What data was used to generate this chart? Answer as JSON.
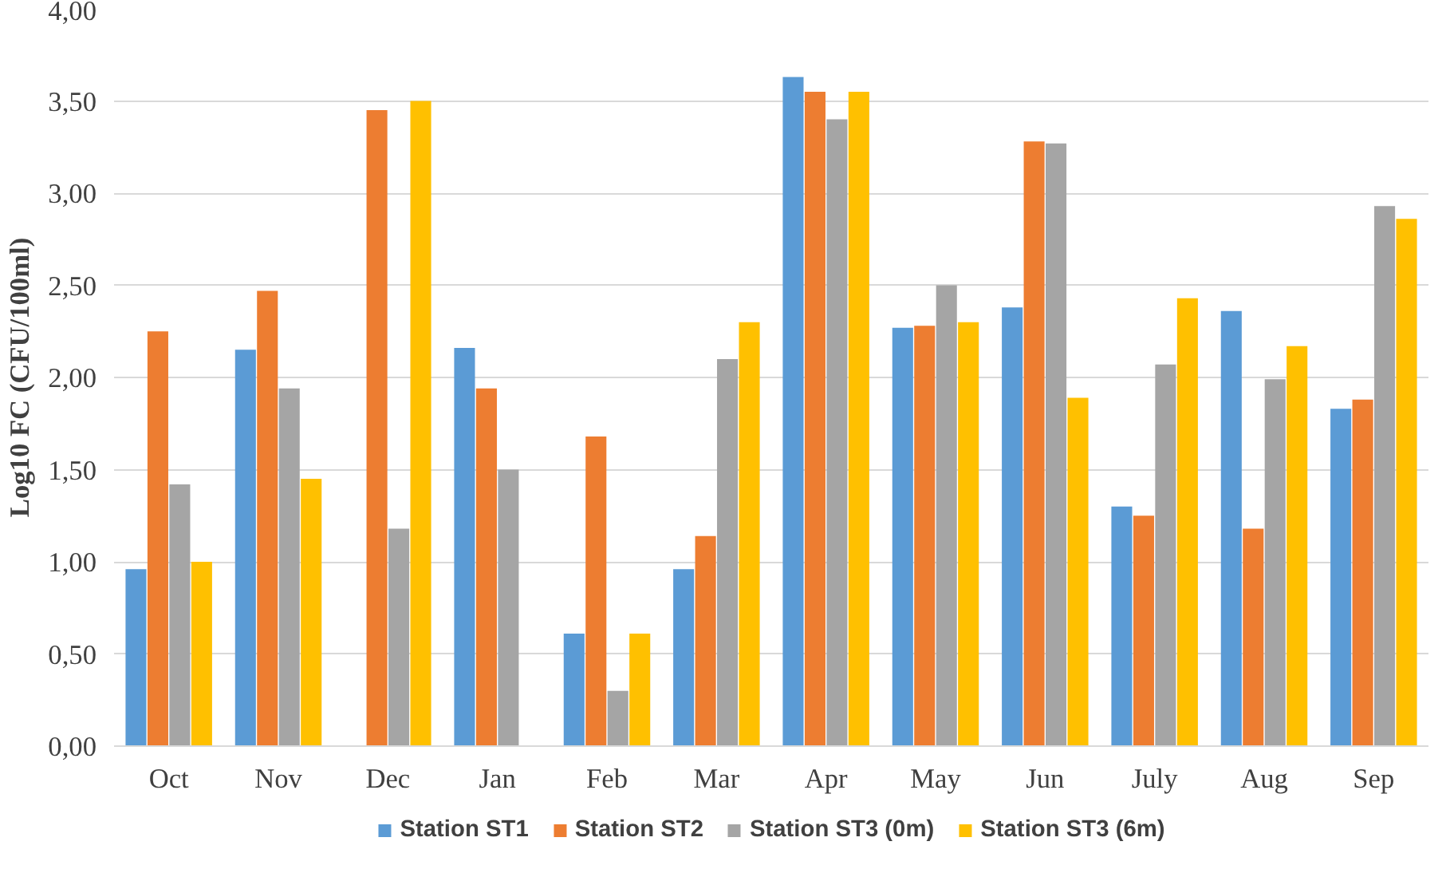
{
  "chart_data": {
    "type": "bar",
    "ylabel": "Log10 FC (CFU/100ml)",
    "categories": [
      "Oct",
      "Nov",
      "Dec",
      "Jan",
      "Feb",
      "Mar",
      "Apr",
      "May",
      "Jun",
      "July",
      "Aug",
      "Sep"
    ],
    "series": [
      {
        "name": "Station ST1",
        "color": "#5b9bd5",
        "values": [
          0.96,
          2.15,
          null,
          2.16,
          0.61,
          0.96,
          3.63,
          2.27,
          2.38,
          1.3,
          2.36,
          1.83
        ]
      },
      {
        "name": "Station ST2",
        "color": "#ed7d31",
        "values": [
          2.25,
          2.47,
          3.45,
          1.94,
          1.68,
          1.14,
          3.55,
          2.28,
          3.28,
          1.25,
          1.18,
          1.88
        ]
      },
      {
        "name": "Station ST3 (0m)",
        "color": "#a5a5a5",
        "values": [
          1.42,
          1.94,
          1.18,
          1.5,
          0.3,
          2.1,
          3.4,
          2.5,
          3.27,
          2.07,
          1.99,
          2.93
        ]
      },
      {
        "name": "Station ST3 (6m)",
        "color": "#ffc000",
        "values": [
          1.0,
          1.45,
          3.5,
          null,
          0.61,
          2.3,
          3.55,
          2.3,
          1.89,
          2.43,
          2.17,
          2.86
        ]
      }
    ],
    "ylim": [
      0,
      4
    ],
    "yticks": [
      {
        "value": 0,
        "label": "0,00"
      },
      {
        "value": 0.5,
        "label": "0,50"
      },
      {
        "value": 1,
        "label": "1,00"
      },
      {
        "value": 1.5,
        "label": "1,50"
      },
      {
        "value": 2,
        "label": "2,00"
      },
      {
        "value": 2.5,
        "label": "2,50"
      },
      {
        "value": 3,
        "label": "3,00"
      },
      {
        "value": 3.5,
        "label": "3,50"
      },
      {
        "value": 4,
        "label": "4,00"
      }
    ],
    "grid": "y",
    "legend": "bottom"
  }
}
